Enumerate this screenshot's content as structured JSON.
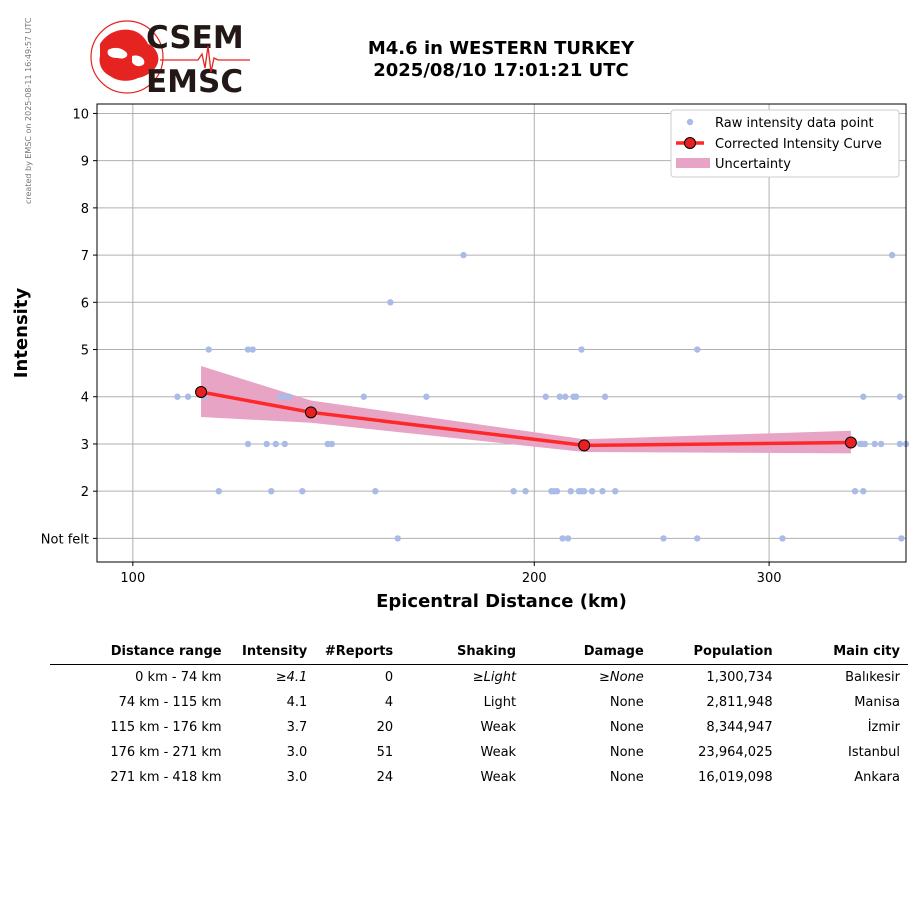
{
  "side_note": "created by EMSC on 2025-08-11 16:49:57 UTC",
  "logo": {
    "line1": "CSEM",
    "line2": "EMSC",
    "colors": {
      "red": "#e52421",
      "dark": "#231815"
    }
  },
  "title_line1": "M4.6 in WESTERN TURKEY",
  "title_line2": "2025/08/10 17:01:21 UTC",
  "chart_data": {
    "type": "scatter",
    "xlabel": "Epicentral Distance (km)",
    "ylabel": "Intensity",
    "x_scale": "log",
    "xlim": [
      94,
      380
    ],
    "ylim": [
      0.5,
      10.2
    ],
    "x_ticks": [
      100,
      200,
      300
    ],
    "y_ticks": [
      {
        "v": 1,
        "label": "Not felt"
      },
      {
        "v": 2,
        "label": "2"
      },
      {
        "v": 3,
        "label": "3"
      },
      {
        "v": 4,
        "label": "4"
      },
      {
        "v": 5,
        "label": "5"
      },
      {
        "v": 6,
        "label": "6"
      },
      {
        "v": 7,
        "label": "7"
      },
      {
        "v": 8,
        "label": "8"
      },
      {
        "v": 9,
        "label": "9"
      },
      {
        "v": 10,
        "label": "10"
      }
    ],
    "grid": true,
    "legend_position": "top-right",
    "colors": {
      "raw": "#aabbe8",
      "curve": "#ff2828",
      "marker": "#e82020",
      "band": "#e8a4c4"
    },
    "series": [
      {
        "name": "Raw intensity data point",
        "points": [
          [
            108,
            4
          ],
          [
            110,
            4
          ],
          [
            113,
            4
          ],
          [
            114,
            5
          ],
          [
            116,
            2
          ],
          [
            122,
            5
          ],
          [
            122,
            3
          ],
          [
            123,
            5
          ],
          [
            126,
            3
          ],
          [
            127,
            2
          ],
          [
            128,
            3
          ],
          [
            129,
            4
          ],
          [
            130,
            3
          ],
          [
            130,
            4
          ],
          [
            131,
            4
          ],
          [
            134,
            2
          ],
          [
            140,
            3
          ],
          [
            141,
            3
          ],
          [
            149,
            4
          ],
          [
            152,
            2
          ],
          [
            156,
            6
          ],
          [
            158,
            1
          ],
          [
            166,
            4
          ],
          [
            177,
            7
          ],
          [
            193,
            2
          ],
          [
            197,
            2
          ],
          [
            204,
            4
          ],
          [
            206,
            2
          ],
          [
            207,
            2
          ],
          [
            208,
            2
          ],
          [
            209,
            4
          ],
          [
            210,
            1
          ],
          [
            211,
            4
          ],
          [
            212,
            1
          ],
          [
            213,
            2
          ],
          [
            214,
            4
          ],
          [
            215,
            4
          ],
          [
            216,
            2
          ],
          [
            217,
            2
          ],
          [
            217,
            5
          ],
          [
            218,
            2
          ],
          [
            221,
            2
          ],
          [
            225,
            2
          ],
          [
            226,
            4
          ],
          [
            230,
            2
          ],
          [
            250,
            1
          ],
          [
            265,
            5
          ],
          [
            265,
            1
          ],
          [
            307,
            1
          ],
          [
            348,
            2
          ],
          [
            351,
            3
          ],
          [
            352,
            3
          ],
          [
            353,
            4
          ],
          [
            353,
            2
          ],
          [
            354,
            3
          ],
          [
            360,
            3
          ],
          [
            364,
            3
          ],
          [
            371,
            7
          ],
          [
            376,
            4
          ],
          [
            376,
            3
          ],
          [
            377,
            1
          ],
          [
            380,
            3
          ]
        ]
      },
      {
        "name": "Corrected Intensity Curve",
        "points": [
          [
            112.5,
            4.1
          ],
          [
            136.0,
            3.67
          ],
          [
            218.0,
            2.97
          ],
          [
            345.5,
            3.03
          ]
        ]
      },
      {
        "name": "Uncertainty",
        "upper": [
          [
            112.5,
            4.65
          ],
          [
            136.0,
            3.92
          ],
          [
            218.0,
            3.1
          ],
          [
            345.5,
            3.28
          ]
        ],
        "lower": [
          [
            112.5,
            3.57
          ],
          [
            136.0,
            3.45
          ],
          [
            218.0,
            2.83
          ],
          [
            345.5,
            2.8
          ]
        ]
      }
    ]
  },
  "table": {
    "headers": [
      "Distance range",
      "Intensity",
      "#Reports",
      "Shaking",
      "Damage",
      "Population",
      "Main city"
    ],
    "rows": [
      {
        "range": "0 km -   74 km",
        "intensity": "≥4.1",
        "reports": "0",
        "shaking": "≥Light",
        "damage": "≥None",
        "population": "1,300,734",
        "city": "Balıkesir"
      },
      {
        "range": "74 km -  115 km",
        "intensity": "4.1",
        "reports": "4",
        "shaking": "Light",
        "damage": "None",
        "population": "2,811,948",
        "city": "Manisa"
      },
      {
        "range": "115 km -  176 km",
        "intensity": "3.7",
        "reports": "20",
        "shaking": "Weak",
        "damage": "None",
        "population": "8,344,947",
        "city": "İzmir"
      },
      {
        "range": "176 km -  271 km",
        "intensity": "3.0",
        "reports": "51",
        "shaking": "Weak",
        "damage": "None",
        "population": "23,964,025",
        "city": "Istanbul"
      },
      {
        "range": "271 km -  418 km",
        "intensity": "3.0",
        "reports": "24",
        "shaking": "Weak",
        "damage": "None",
        "population": "16,019,098",
        "city": "Ankara"
      }
    ]
  }
}
